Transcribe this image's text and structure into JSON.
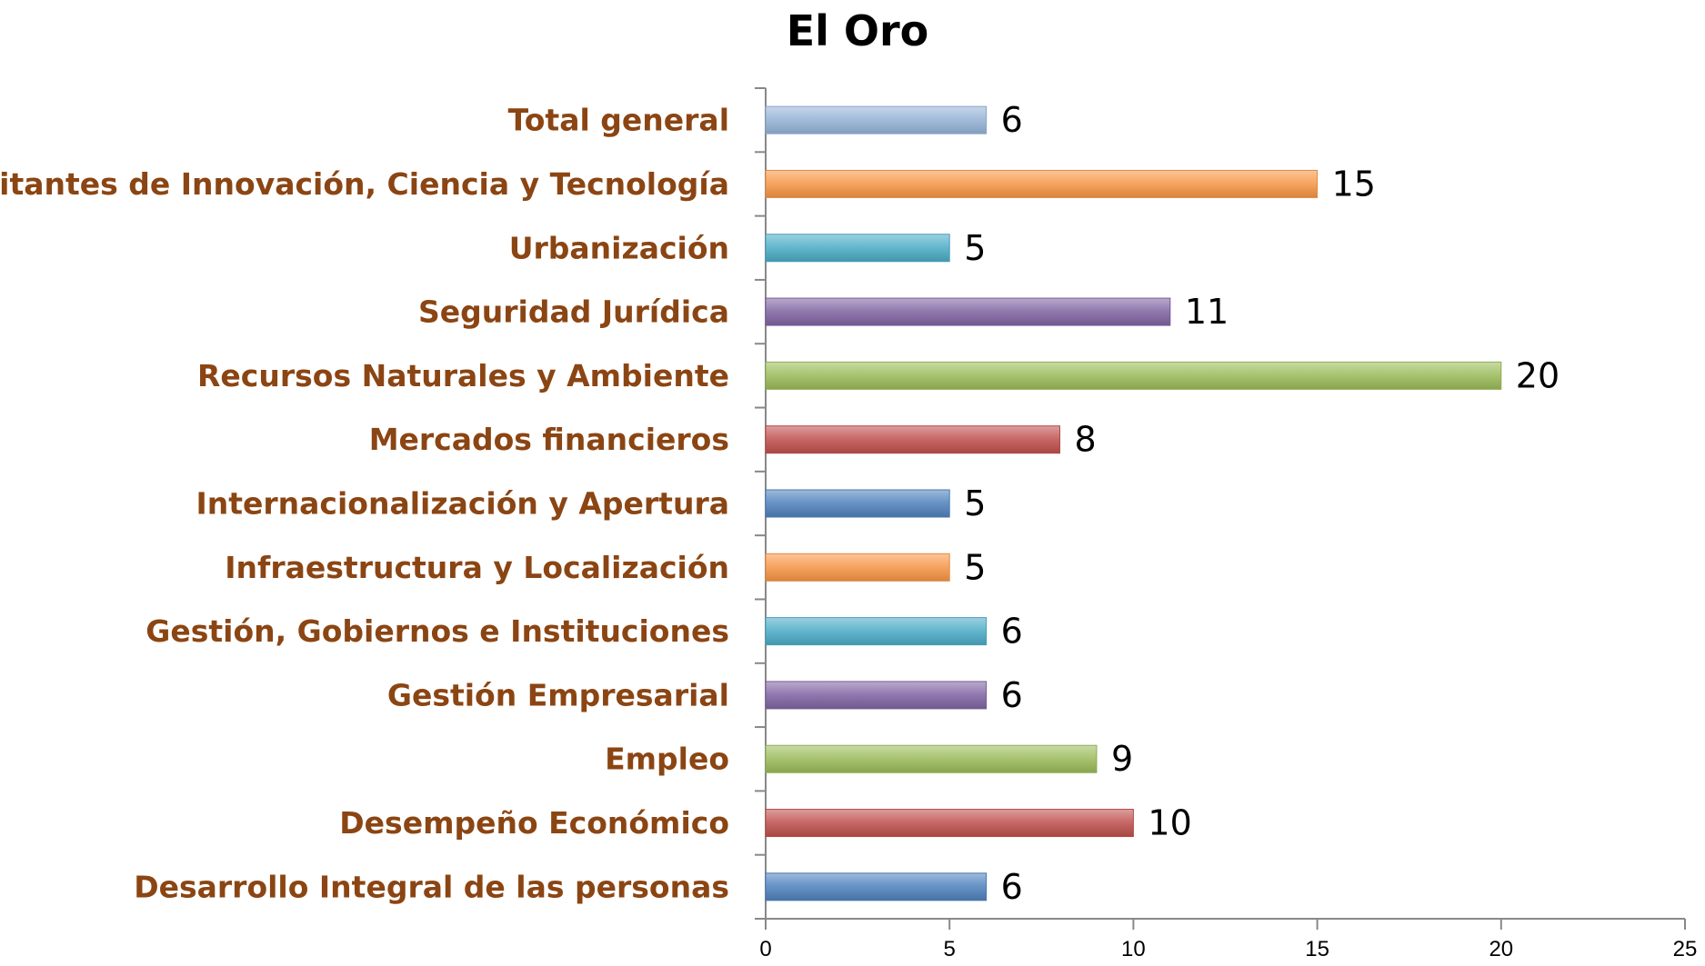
{
  "chart_data": {
    "type": "bar",
    "orientation": "horizontal",
    "title": "El Oro",
    "xlabel": "",
    "ylabel": "",
    "categories": [
      "Desarrollo Integral de las personas",
      "Desempeño Económico",
      "Empleo",
      "Gestión Empresarial",
      "Gestión, Gobiernos e Instituciones",
      "Infraestructura y Localización",
      "Internacionalización y Apertura",
      "Mercados financieros",
      "Recursos Naturales y Ambiente",
      "Seguridad Jurídica",
      "Urbanización",
      "Habilitantes de Innovación, Ciencia y Tecnología",
      "Total general"
    ],
    "values": [
      6,
      10,
      9,
      6,
      6,
      5,
      5,
      8,
      20,
      11,
      5,
      15,
      6
    ],
    "xlim": [
      0,
      25
    ],
    "x_ticks": [
      "0",
      "5",
      "10",
      "15",
      "20",
      "25"
    ],
    "grid": false,
    "legend": "none",
    "colors": [
      "#4F81BD",
      "#C0504D",
      "#9BBB59",
      "#8064A2",
      "#4BACC6",
      "#F79646",
      "#4F81BD",
      "#C0504D",
      "#9BBB59",
      "#8064A2",
      "#4BACC6",
      "#F79646",
      "#95B3D7"
    ],
    "label_color": "#8B4513"
  }
}
